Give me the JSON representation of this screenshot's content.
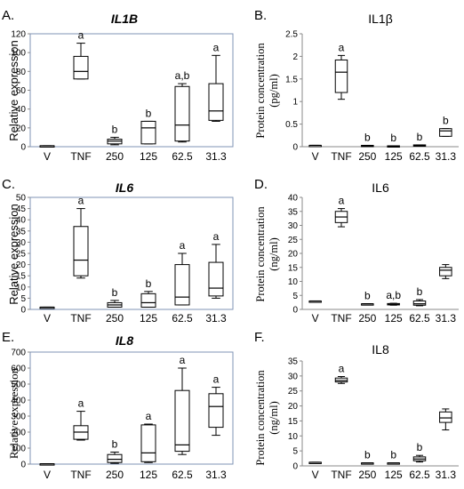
{
  "chart_data": [
    {
      "type": "box",
      "panel_label": "A.",
      "title": "IL1B",
      "title_italic": true,
      "ylabel": "Relative expression",
      "ylabel_font": "sans",
      "ylim": [
        0,
        120
      ],
      "yticks": [
        0,
        20,
        40,
        60,
        80,
        100,
        120
      ],
      "categories": [
        "V",
        "TNF",
        "250",
        "125",
        "62.5",
        "31.3"
      ],
      "boxes": [
        {
          "min": 1,
          "q1": 1,
          "median": 1,
          "q3": 1,
          "max": 1,
          "label": ""
        },
        {
          "min": 72,
          "q1": 72,
          "median": 80,
          "q3": 96,
          "max": 110,
          "label": "a"
        },
        {
          "min": 2,
          "q1": 3,
          "median": 6,
          "q3": 8,
          "max": 10,
          "label": "b"
        },
        {
          "min": 3,
          "q1": 3,
          "median": 20,
          "q3": 27,
          "max": 27,
          "label": "b"
        },
        {
          "min": 5,
          "q1": 6,
          "median": 23,
          "q3": 64,
          "max": 67,
          "label": "a,b"
        },
        {
          "min": 27,
          "q1": 28,
          "median": 38,
          "q3": 67,
          "max": 97,
          "label": "a"
        }
      ]
    },
    {
      "type": "box",
      "panel_label": "B.",
      "title": "IL1β",
      "title_italic": false,
      "ylabel": "Protein concentration (pg/ml)",
      "ylabel_lines": [
        "Protein concentration",
        "(pg/ml)"
      ],
      "ylabel_font": "serif",
      "ylim": [
        0,
        2.5
      ],
      "yticks": [
        0,
        0.5,
        1,
        1.5,
        2,
        2.5
      ],
      "categories": [
        "V",
        "TNF",
        "250",
        "125",
        "62.5",
        "31.3"
      ],
      "boxes": [
        {
          "min": 0.03,
          "q1": 0.03,
          "median": 0.03,
          "q3": 0.03,
          "max": 0.03,
          "label": ""
        },
        {
          "min": 1.05,
          "q1": 1.2,
          "median": 1.65,
          "q3": 1.92,
          "max": 2.02,
          "label": "a"
        },
        {
          "min": 0.02,
          "q1": 0.02,
          "median": 0.02,
          "q3": 0.03,
          "max": 0.03,
          "label": "b"
        },
        {
          "min": 0.01,
          "q1": 0.01,
          "median": 0.01,
          "q3": 0.02,
          "max": 0.02,
          "label": "b"
        },
        {
          "min": 0.02,
          "q1": 0.02,
          "median": 0.03,
          "q3": 0.04,
          "max": 0.04,
          "label": "b"
        },
        {
          "min": 0.23,
          "q1": 0.23,
          "median": 0.35,
          "q3": 0.4,
          "max": 0.4,
          "label": "b"
        }
      ]
    },
    {
      "type": "box",
      "panel_label": "C.",
      "title": "IL6",
      "title_italic": true,
      "ylabel": "Relative expression",
      "ylabel_font": "sans",
      "ylim": [
        0,
        50
      ],
      "yticks": [
        0,
        5,
        10,
        15,
        20,
        25,
        30,
        35,
        40,
        45,
        50
      ],
      "categories": [
        "V",
        "TNF",
        "250",
        "125",
        "62.5",
        "31.3"
      ],
      "boxes": [
        {
          "min": 1,
          "q1": 1,
          "median": 1,
          "q3": 1,
          "max": 1,
          "label": ""
        },
        {
          "min": 14,
          "q1": 15,
          "median": 22,
          "q3": 37,
          "max": 45,
          "label": "a"
        },
        {
          "min": 1,
          "q1": 1,
          "median": 2,
          "q3": 3,
          "max": 4,
          "label": "b"
        },
        {
          "min": 1,
          "q1": 1,
          "median": 3,
          "q3": 7,
          "max": 8,
          "label": "b"
        },
        {
          "min": 2,
          "q1": 2,
          "median": 5.5,
          "q3": 20,
          "max": 25,
          "label": "a"
        },
        {
          "min": 5,
          "q1": 6,
          "median": 9.5,
          "q3": 21,
          "max": 29,
          "label": "a"
        }
      ]
    },
    {
      "type": "box",
      "panel_label": "D.",
      "title": "IL6",
      "title_italic": false,
      "ylabel": "Protein concentration (ng/ml)",
      "ylabel_lines": [
        "Protein concentration",
        "(ng/ml)"
      ],
      "ylabel_font": "serif",
      "ylim": [
        0,
        40
      ],
      "yticks": [
        0,
        5,
        10,
        15,
        20,
        25,
        30,
        35,
        40
      ],
      "categories": [
        "V",
        "TNF",
        "250",
        "125",
        "62.5",
        "31.3"
      ],
      "boxes": [
        {
          "min": 3,
          "q1": 3,
          "median": 3,
          "q3": 3,
          "max": 3,
          "label": ""
        },
        {
          "min": 29.5,
          "q1": 31,
          "median": 33,
          "q3": 35,
          "max": 36,
          "label": "a"
        },
        {
          "min": 2,
          "q1": 2,
          "median": 2,
          "q3": 2,
          "max": 2,
          "label": "b"
        },
        {
          "min": 1.5,
          "q1": 1.6,
          "median": 1.8,
          "q3": 2.1,
          "max": 2.2,
          "label": "a,b"
        },
        {
          "min": 1.3,
          "q1": 1.5,
          "median": 2,
          "q3": 3,
          "max": 3.5,
          "label": "b"
        },
        {
          "min": 11,
          "q1": 12,
          "median": 14,
          "q3": 15,
          "max": 16,
          "label": ""
        }
      ]
    },
    {
      "type": "box",
      "panel_label": "E.",
      "title": "IL8",
      "title_italic": true,
      "ylabel": "Relative expression",
      "ylabel_font": "serif",
      "ylim": [
        0,
        700
      ],
      "yticks": [
        0,
        100,
        200,
        300,
        400,
        500,
        600,
        700
      ],
      "categories": [
        "V",
        "TNF",
        "250",
        "125",
        "62.5",
        "31.3"
      ],
      "boxes": [
        {
          "min": 2,
          "q1": 2,
          "median": 2,
          "q3": 2,
          "max": 2,
          "label": ""
        },
        {
          "min": 150,
          "q1": 155,
          "median": 200,
          "q3": 240,
          "max": 330,
          "label": "a"
        },
        {
          "min": 5,
          "q1": 10,
          "median": 30,
          "q3": 60,
          "max": 75,
          "label": "b"
        },
        {
          "min": 10,
          "q1": 15,
          "median": 70,
          "q3": 245,
          "max": 250,
          "label": "a"
        },
        {
          "min": 60,
          "q1": 80,
          "median": 120,
          "q3": 460,
          "max": 600,
          "label": "a"
        },
        {
          "min": 180,
          "q1": 230,
          "median": 360,
          "q3": 440,
          "max": 480,
          "label": "a"
        }
      ]
    },
    {
      "type": "box",
      "panel_label": "F.",
      "title": "IL8",
      "title_italic": false,
      "ylabel": "Protein concentration (ng/ml)",
      "ylabel_lines": [
        "Protein concentration",
        "(ng/ml)"
      ],
      "ylabel_font": "serif",
      "ylim": [
        0,
        35
      ],
      "yticks": [
        0,
        5,
        10,
        15,
        20,
        25,
        30,
        35
      ],
      "categories": [
        "V",
        "TNF",
        "250",
        "125",
        "62.5",
        "31.3"
      ],
      "boxes": [
        {
          "min": 1.2,
          "q1": 1.2,
          "median": 1.2,
          "q3": 1.2,
          "max": 1.2,
          "label": ""
        },
        {
          "min": 27.5,
          "q1": 28,
          "median": 28.5,
          "q3": 29.3,
          "max": 29.8,
          "label": "a"
        },
        {
          "min": 1,
          "q1": 1,
          "median": 1,
          "q3": 1,
          "max": 1,
          "label": "b"
        },
        {
          "min": 1,
          "q1": 1,
          "median": 1,
          "q3": 1,
          "max": 1,
          "label": "b"
        },
        {
          "min": 1.3,
          "q1": 1.7,
          "median": 2.3,
          "q3": 3,
          "max": 3.5,
          "label": "b"
        },
        {
          "min": 12,
          "q1": 14.5,
          "median": 16,
          "q3": 18,
          "max": 19,
          "label": ""
        }
      ]
    }
  ]
}
